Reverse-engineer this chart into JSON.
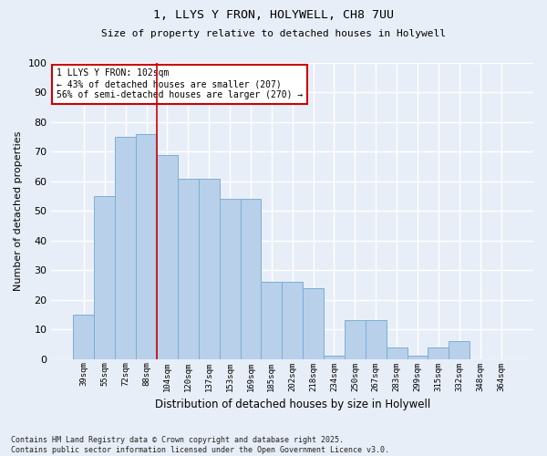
{
  "title_line1": "1, LLYS Y FRON, HOLYWELL, CH8 7UU",
  "title_line2": "Size of property relative to detached houses in Holywell",
  "xlabel": "Distribution of detached houses by size in Holywell",
  "ylabel": "Number of detached properties",
  "bar_labels": [
    "39sqm",
    "55sqm",
    "72sqm",
    "88sqm",
    "104sqm",
    "120sqm",
    "137sqm",
    "153sqm",
    "169sqm",
    "185sqm",
    "202sqm",
    "218sqm",
    "234sqm",
    "250sqm",
    "267sqm",
    "283sqm",
    "299sqm",
    "315sqm",
    "332sqm",
    "348sqm",
    "364sqm"
  ],
  "bar_values": [
    15,
    55,
    75,
    76,
    69,
    61,
    61,
    54,
    54,
    26,
    26,
    24,
    1,
    13,
    13,
    4,
    1,
    4,
    6,
    0,
    0
  ],
  "bar_color": "#b8d0ea",
  "bar_edgecolor": "#7bafd4",
  "ylim": [
    0,
    100
  ],
  "yticks": [
    0,
    10,
    20,
    30,
    40,
    50,
    60,
    70,
    80,
    90,
    100
  ],
  "property_bin_index": 4,
  "vline_color": "#cc0000",
  "annotation_text": "1 LLYS Y FRON: 102sqm\n← 43% of detached houses are smaller (207)\n56% of semi-detached houses are larger (270) →",
  "footnote_line1": "Contains HM Land Registry data © Crown copyright and database right 2025.",
  "footnote_line2": "Contains public sector information licensed under the Open Government Licence v3.0.",
  "background_color": "#e8eef8",
  "grid_color": "#ffffff",
  "annotation_box_edgecolor": "#cc0000",
  "annotation_box_facecolor": "#ffffff"
}
